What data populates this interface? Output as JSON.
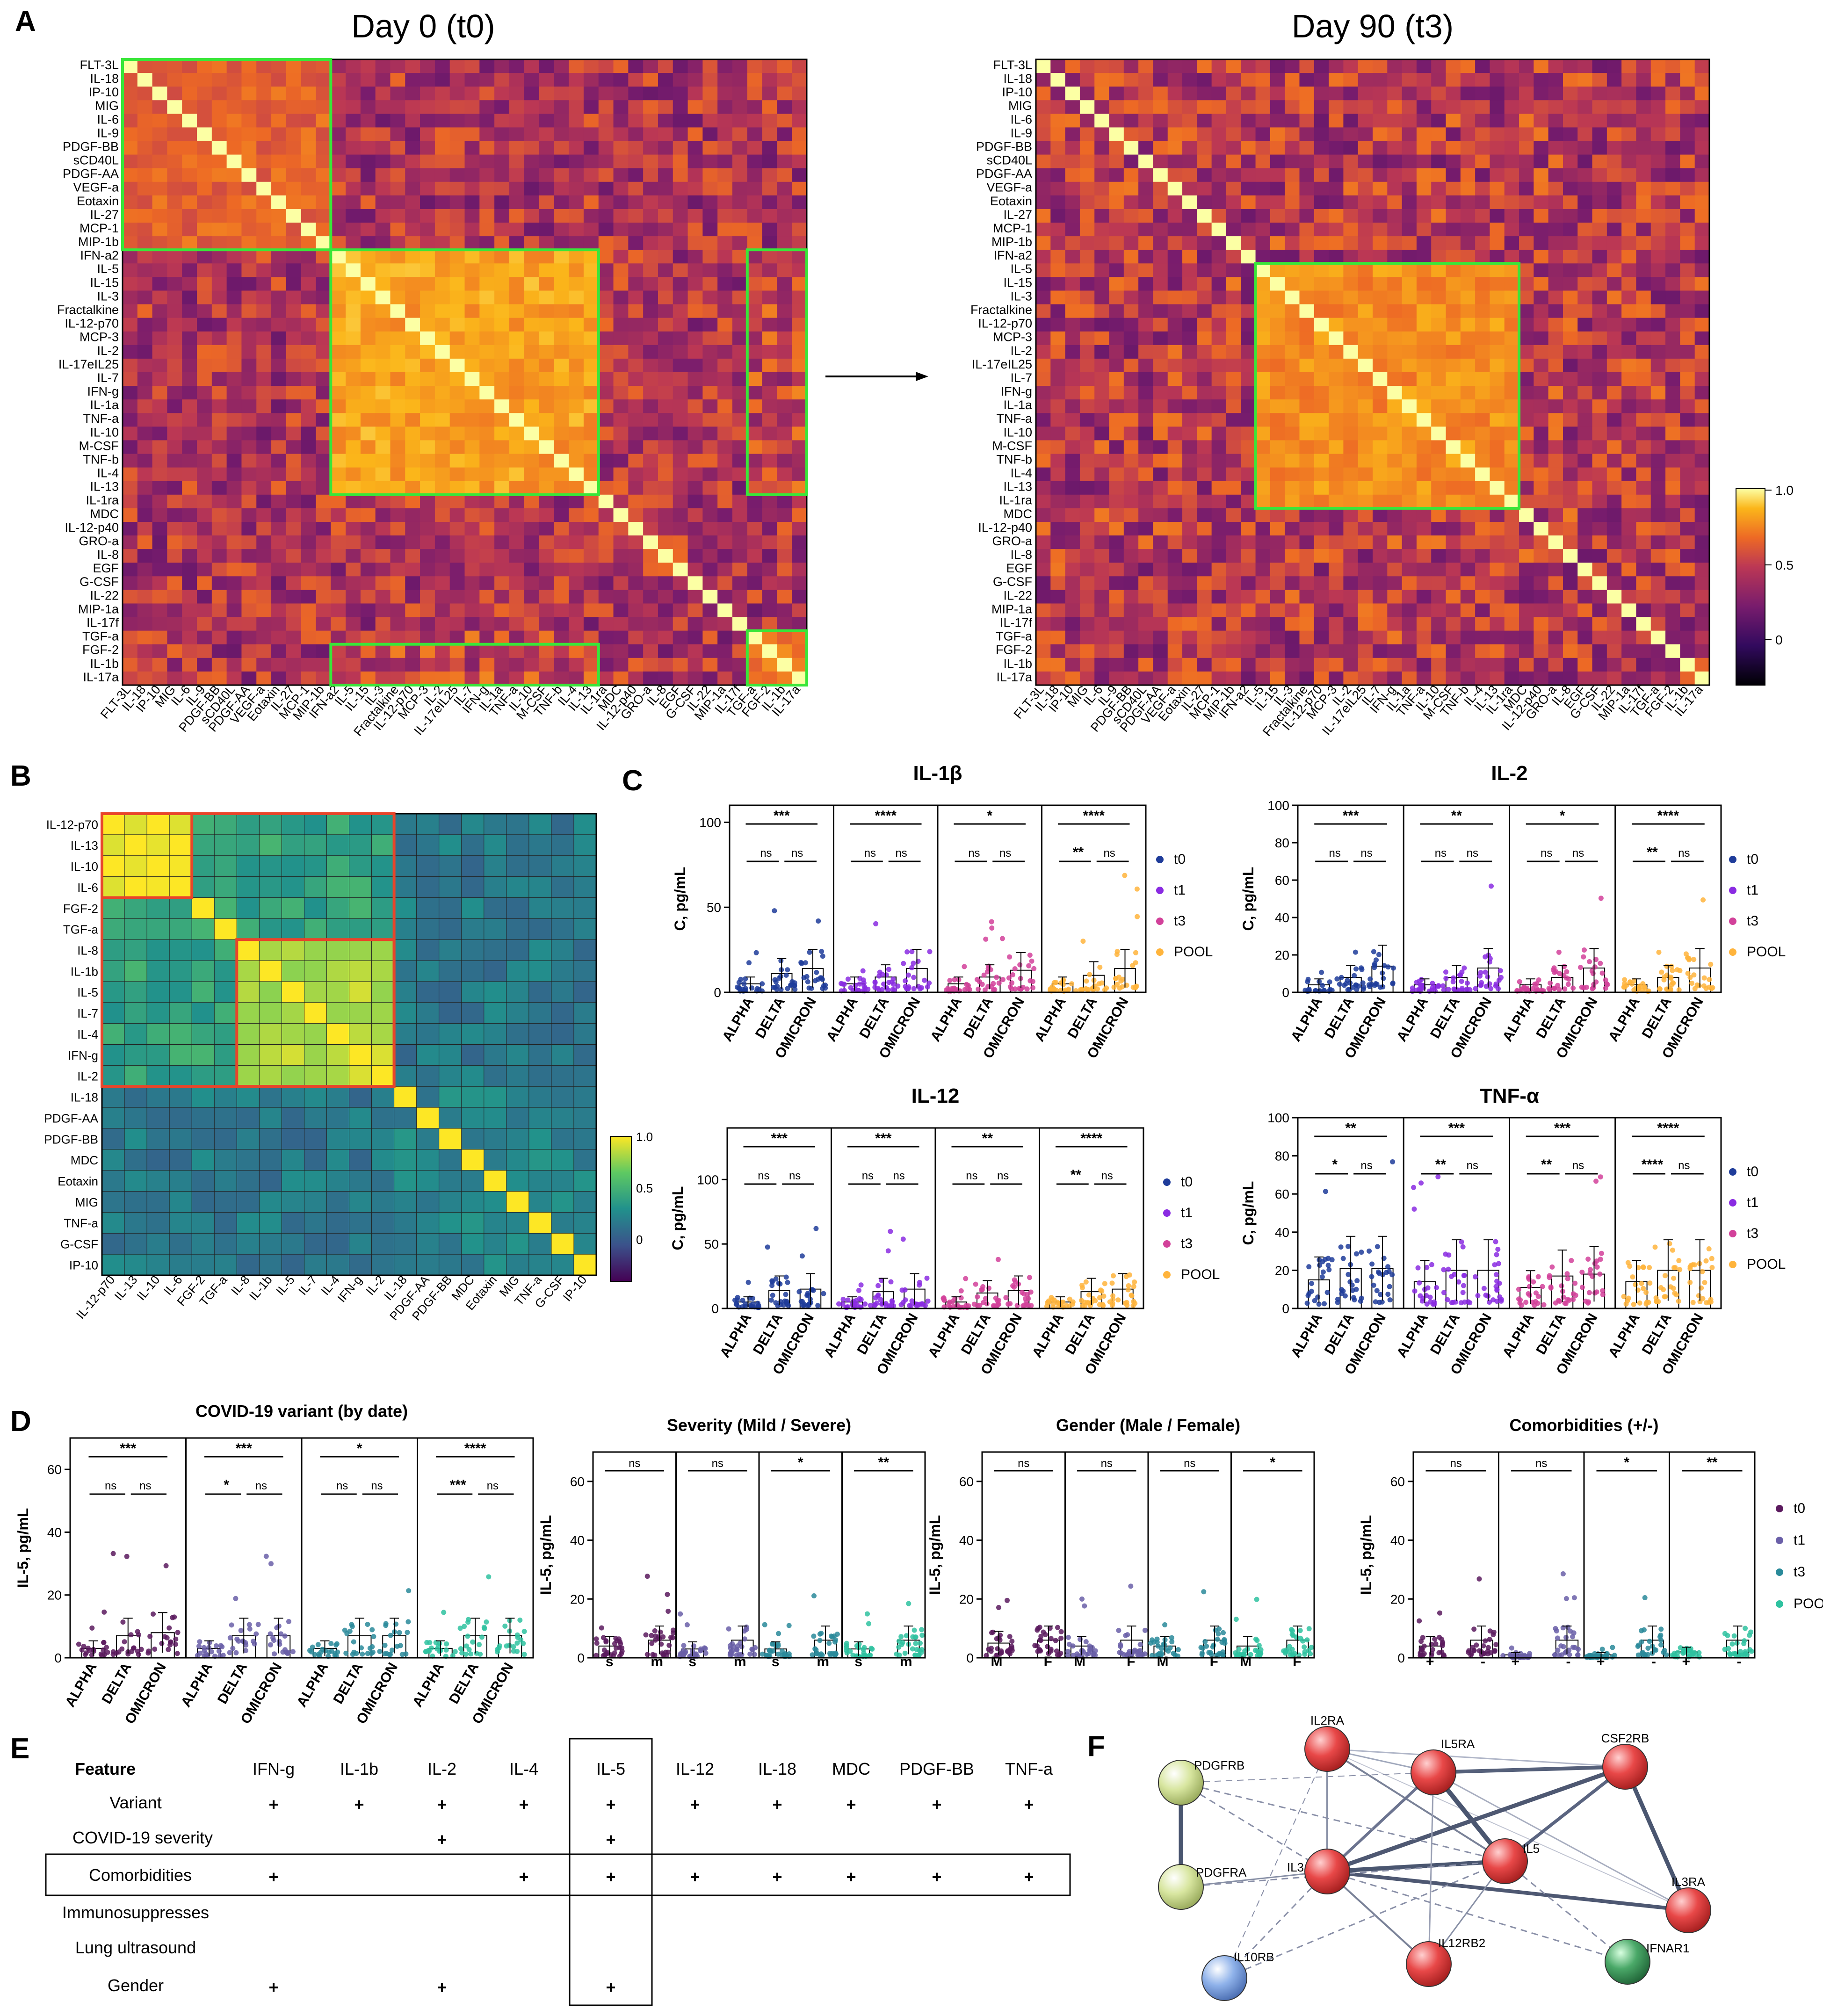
{
  "panels": {
    "A": "A",
    "B": "B",
    "C": "C",
    "D": "D",
    "E": "E",
    "F": "F"
  },
  "heatmap_a": {
    "titles": [
      "Day 0 (t0)",
      "Day 90 (t3)"
    ],
    "labels": [
      "FLT-3L",
      "IL-18",
      "IP-10",
      "MIG",
      "IL-6",
      "IL-9",
      "PDGF-BB",
      "sCD40L",
      "PDGF-AA",
      "VEGF-a",
      "Eotaxin",
      "IL-27",
      "MCP-1",
      "MIP-1b",
      "IFN-a2",
      "IL-5",
      "IL-15",
      "IL-3",
      "Fractalkine",
      "IL-12-p70",
      "MCP-3",
      "IL-2",
      "IL-17eIL25",
      "IL-7",
      "IFN-g",
      "IL-1a",
      "TNF-a",
      "IL-10",
      "M-CSF",
      "TNF-b",
      "IL-4",
      "IL-13",
      "IL-1ra",
      "MDC",
      "IL-12-p40",
      "GRO-a",
      "IL-8",
      "EGF",
      "G-CSF",
      "IL-22",
      "MIP-1a",
      "IL-17f",
      "TGF-a",
      "FGF-2",
      "IL-1b",
      "IL-17a"
    ],
    "colorbar": [
      "1.0",
      "0.5",
      "0"
    ]
  },
  "heatmap_b": {
    "labels": [
      "IL-12-p70",
      "IL-13",
      "IL-10",
      "IL-6",
      "FGF-2",
      "TGF-a",
      "IL-8",
      "IL-1b",
      "IL-5",
      "IL-7",
      "IL-4",
      "IFN-g",
      "IL-2",
      "IL-18",
      "PDGF-AA",
      "PDGF-BB",
      "MDC",
      "Eotaxin",
      "MIG",
      "TNF-a",
      "G-CSF",
      "IP-10"
    ],
    "colorbar": [
      "1.0",
      "0.5",
      "0"
    ]
  },
  "panel_c": {
    "ylabel": "C, pg/mL",
    "categories": [
      "ALPHA",
      "DELTA",
      "OMICRON"
    ],
    "legend": [
      "t0",
      "t1",
      "t3",
      "POOL"
    ],
    "colors": {
      "t0": "#1f3c9a",
      "t1": "#8a2be2",
      "t3": "#d2419a",
      "POOL": "#ffb43c"
    },
    "ns": "ns",
    "plots": [
      {
        "title": "IL-1β",
        "yticks": [
          "0",
          "50",
          "100"
        ],
        "ymax": 110,
        "top": [
          "***",
          "****",
          "*",
          "****"
        ],
        "left": [
          "ns",
          "ns",
          "ns",
          "**"
        ],
        "right": [
          "ns",
          "ns",
          "ns",
          "ns"
        ],
        "means": [
          [
            5,
            11,
            14
          ],
          [
            5,
            9,
            14
          ],
          [
            5,
            9,
            13
          ],
          [
            5,
            10,
            14
          ]
        ]
      },
      {
        "title": "IL-2",
        "yticks": [
          "0",
          "20",
          "40",
          "60",
          "80",
          "100"
        ],
        "ymax": 100,
        "top": [
          "***",
          "**",
          "*",
          "****"
        ],
        "left": [
          "ns",
          "ns",
          "ns",
          "**"
        ],
        "right": [
          "ns",
          "ns",
          "ns",
          "ns"
        ],
        "means": [
          [
            4,
            8,
            14
          ],
          [
            4,
            8,
            13
          ],
          [
            4,
            8,
            13
          ],
          [
            4,
            8,
            13
          ]
        ]
      },
      {
        "title": "IL-12",
        "yticks": [
          "0",
          "50",
          "100"
        ],
        "ymax": 140,
        "top": [
          "***",
          "***",
          "**",
          "****"
        ],
        "left": [
          "ns",
          "ns",
          "ns",
          "**"
        ],
        "right": [
          "ns",
          "ns",
          "ns",
          "ns"
        ],
        "means": [
          [
            5,
            14,
            15
          ],
          [
            5,
            13,
            15
          ],
          [
            5,
            12,
            14
          ],
          [
            5,
            13,
            15
          ]
        ]
      },
      {
        "title": "TNF-α",
        "yticks": [
          "0",
          "20",
          "40",
          "60",
          "80",
          "100"
        ],
        "ymax": 100,
        "top": [
          "**",
          "***",
          "***",
          "****"
        ],
        "left": [
          "*",
          "**",
          "**",
          "****"
        ],
        "right": [
          "ns",
          "ns",
          "ns",
          "ns"
        ],
        "means": [
          [
            15,
            21,
            21
          ],
          [
            14,
            20,
            20
          ],
          [
            11,
            17,
            18
          ],
          [
            14,
            20,
            20
          ]
        ]
      }
    ]
  },
  "panel_d": {
    "ylabel": "IL-5, pg/mL",
    "yticks": [
      "0",
      "20",
      "40",
      "60"
    ],
    "legend": [
      "t0",
      "t1",
      "t3",
      "POOL"
    ],
    "colors": {
      "t0": "#5b1a5e",
      "t1": "#6a5fa8",
      "t3": "#2a8a9a",
      "POOL": "#2fc2a0"
    },
    "ns": "ns",
    "plots": [
      {
        "title": "COVID-19 variant (by date)",
        "categories": [
          "ALPHA",
          "DELTA",
          "OMICRON"
        ],
        "top": [
          "***",
          "***",
          "*",
          "****"
        ],
        "left": [
          "ns",
          "*",
          "ns",
          "***"
        ],
        "right": [
          "ns",
          "ns",
          "ns",
          "ns"
        ],
        "means": [
          [
            3,
            7,
            8
          ],
          [
            3,
            7,
            7
          ],
          [
            3,
            7,
            7
          ],
          [
            3,
            7,
            7
          ]
        ]
      },
      {
        "title": "Severity (Mild / Severe)",
        "categories": [
          "s",
          "m"
        ],
        "top": [
          "ns",
          "ns",
          "*",
          "**"
        ],
        "means": [
          [
            4,
            6
          ],
          [
            3,
            6
          ],
          [
            3,
            6
          ],
          [
            3,
            6
          ]
        ]
      },
      {
        "title": "Gender (Male / Female)",
        "categories": [
          "M",
          "F"
        ],
        "top": [
          "ns",
          "ns",
          "ns",
          "*"
        ],
        "means": [
          [
            5,
            6
          ],
          [
            4,
            6
          ],
          [
            4,
            6
          ],
          [
            4,
            6
          ]
        ]
      },
      {
        "title": "Comorbidities (+/-)",
        "categories": [
          "+",
          "-"
        ],
        "top": [
          "ns",
          "ns",
          "*",
          "**"
        ],
        "means": [
          [
            4,
            6
          ],
          [
            1,
            6
          ],
          [
            1,
            6
          ],
          [
            2,
            6
          ]
        ]
      }
    ]
  },
  "table_e": {
    "header": [
      "Feature",
      "IFN-g",
      "IL-1b",
      "IL-2",
      "IL-4",
      "IL-5",
      "IL-12",
      "IL-18",
      "MDC",
      "PDGF-BB",
      "TNF-a"
    ],
    "mark": "+",
    "rows": [
      {
        "label": "Variant",
        "marks": [
          1,
          1,
          1,
          1,
          1,
          1,
          1,
          1,
          1,
          1
        ]
      },
      {
        "label": "COVID-19 severity",
        "marks": [
          0,
          0,
          1,
          0,
          1,
          0,
          0,
          0,
          0,
          0
        ]
      },
      {
        "label": "Comorbidities",
        "marks": [
          1,
          0,
          0,
          1,
          1,
          1,
          1,
          1,
          1,
          1
        ]
      },
      {
        "label": "Immunosuppresses",
        "marks": [
          0,
          0,
          0,
          0,
          0,
          0,
          0,
          0,
          0,
          0
        ]
      },
      {
        "label": "Lung ultrasound",
        "marks": [
          0,
          0,
          0,
          0,
          0,
          0,
          0,
          0,
          0,
          0
        ]
      },
      {
        "label": "Gender",
        "marks": [
          1,
          0,
          1,
          0,
          1,
          0,
          0,
          0,
          0,
          0
        ]
      }
    ]
  },
  "network_f": {
    "nodes": [
      {
        "id": "PDGFRB",
        "color": "#d8e6a0"
      },
      {
        "id": "IL2RA",
        "color": "#e84848"
      },
      {
        "id": "IL5RA",
        "color": "#e84848"
      },
      {
        "id": "CSF2RB",
        "color": "#e84848"
      },
      {
        "id": "IL5",
        "color": "#e84848"
      },
      {
        "id": "PDGFRA",
        "color": "#d8e6a0"
      },
      {
        "id": "IL3",
        "color": "#e84848"
      },
      {
        "id": "IL3RA",
        "color": "#e84848"
      },
      {
        "id": "IL10RB",
        "color": "#8fb2ea"
      },
      {
        "id": "IL12RB2",
        "color": "#e84848"
      },
      {
        "id": "IFNAR1",
        "color": "#4aa868"
      }
    ]
  }
}
